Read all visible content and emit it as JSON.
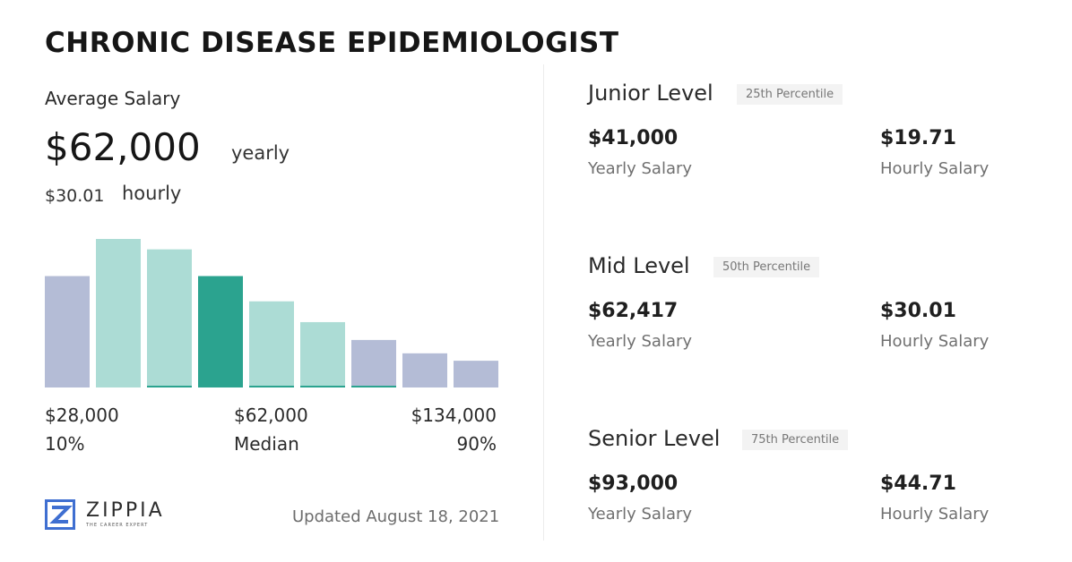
{
  "title": "CHRONIC DISEASE EPIDEMIOLOGIST",
  "average": {
    "label": "Average Salary",
    "yearly": "$62,000",
    "yearly_unit": "yearly",
    "hourly": "$30.01",
    "hourly_unit": "hourly"
  },
  "chart_data": {
    "type": "bar",
    "values": [
      0.75,
      1.0,
      0.93,
      0.75,
      0.58,
      0.44,
      0.32,
      0.23,
      0.18
    ],
    "highlight_index": 3,
    "bar_colors": [
      "#b4bcd6",
      "#acdcd5",
      "#acdcd5",
      "#2ba38f",
      "#acdcd5",
      "#acdcd5",
      "#b4bcd6",
      "#b4bcd6",
      "#b4bcd6"
    ],
    "baseline_marked": [
      false,
      false,
      true,
      false,
      true,
      true,
      true,
      false,
      false
    ],
    "baseline_color": "#2ba38f",
    "x_labels": [
      {
        "value": "$28,000",
        "caption": "10%"
      },
      {
        "value": "$62,000",
        "caption": "Median"
      },
      {
        "value": "$134,000",
        "caption": "90%"
      }
    ]
  },
  "footer": {
    "brand": "ZIPPIA",
    "tagline": "THE CAREER EXPERT",
    "updated": "Updated August 18, 2021",
    "logo_color": "#3f6fd1"
  },
  "levels": [
    {
      "name": "Junior Level",
      "badge": "25th Percentile",
      "yearly": "$41,000",
      "yearly_label": "Yearly Salary",
      "hourly": "$19.71",
      "hourly_label": "Hourly Salary"
    },
    {
      "name": "Mid Level",
      "badge": "50th Percentile",
      "yearly": "$62,417",
      "yearly_label": "Yearly Salary",
      "hourly": "$30.01",
      "hourly_label": "Hourly Salary"
    },
    {
      "name": "Senior Level",
      "badge": "75th Percentile",
      "yearly": "$93,000",
      "yearly_label": "Yearly Salary",
      "hourly": "$44.71",
      "hourly_label": "Hourly Salary"
    }
  ]
}
